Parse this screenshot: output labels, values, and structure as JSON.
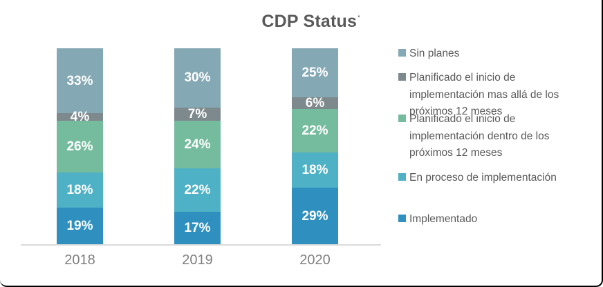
{
  "frame": {
    "background": "#FFFFFF",
    "border_color": "#000000"
  },
  "chart_data": {
    "type": "bar",
    "stacked": true,
    "title": "CDP Status",
    "title_mark": "·",
    "unit": "%",
    "categories": [
      "2018",
      "2019",
      "2020"
    ],
    "series": [
      {
        "name": "Sin planes",
        "color": "#85A9B4",
        "values": [
          33,
          30,
          25
        ]
      },
      {
        "name": "Planificado el inicio de implementación mas allá de los próximos 12 meses",
        "color": "#7D898C",
        "values": [
          4,
          7,
          6
        ]
      },
      {
        "name": "Planificado el inicio de implementación dentro de los próximos 12 meses",
        "color": "#75BC9E",
        "values": [
          26,
          24,
          22
        ]
      },
      {
        "name": "En proceso de implementación",
        "color": "#4EB1C5",
        "values": [
          18,
          22,
          18
        ]
      },
      {
        "name": "Implementado",
        "color": "#2F90C0",
        "values": [
          19,
          17,
          29
        ]
      }
    ],
    "series_order": "first entry is top of stack",
    "value_labels": "inside segments, white bold, shown as N%",
    "legend_position": "right",
    "ylim": [
      0,
      100
    ],
    "grid": false,
    "axis_line_color": "#DADADA",
    "text_colors": {
      "title": "#595959",
      "axis_labels": "#7F7F7F",
      "legend": "#595959",
      "bar_labels": "#FFFFFF"
    }
  }
}
